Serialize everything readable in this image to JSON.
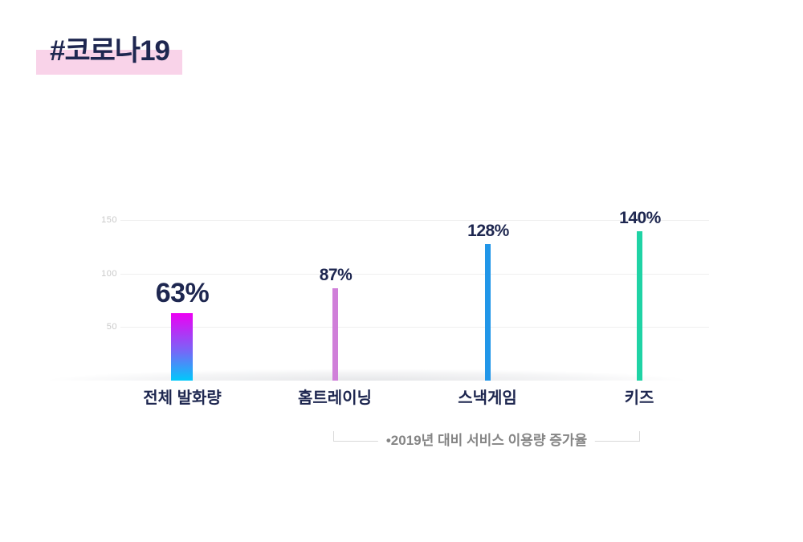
{
  "slide": {
    "title": "#코로나19"
  },
  "colors": {
    "title_text": "#1e2750",
    "title_highlight": "#f9d3e9",
    "value_label": "#1e2750",
    "category_label": "#1e2750",
    "ytick": "#c9c9c9",
    "gridline": "#efefef",
    "annotation_text": "#858585",
    "bracket_line": "#d9d9d9"
  },
  "chart_data": {
    "type": "bar",
    "title": "#코로나19",
    "categories": [
      "전체 발화량",
      "홈트레이닝",
      "스낵게임",
      "키즈"
    ],
    "values": [
      63,
      87,
      128,
      140
    ],
    "value_labels": [
      "63%",
      "87%",
      "128%",
      "140%"
    ],
    "ylim": [
      0,
      150
    ],
    "yticks": [
      150,
      100,
      50
    ],
    "ytick_labels": [
      "150",
      "100",
      "50"
    ],
    "grid": true,
    "legend": "none",
    "annotation": "•2019년 대비 서비스 이용량 증가율",
    "annotation_span": [
      "홈트레이닝",
      "키즈"
    ],
    "bar_colors": [
      "linear-gradient(180deg, #ed00f3 0%, #7a64f7 55%, #00c9fa 100%)",
      "#d07fd9",
      "#2196e8",
      "#1fd3a5"
    ]
  }
}
